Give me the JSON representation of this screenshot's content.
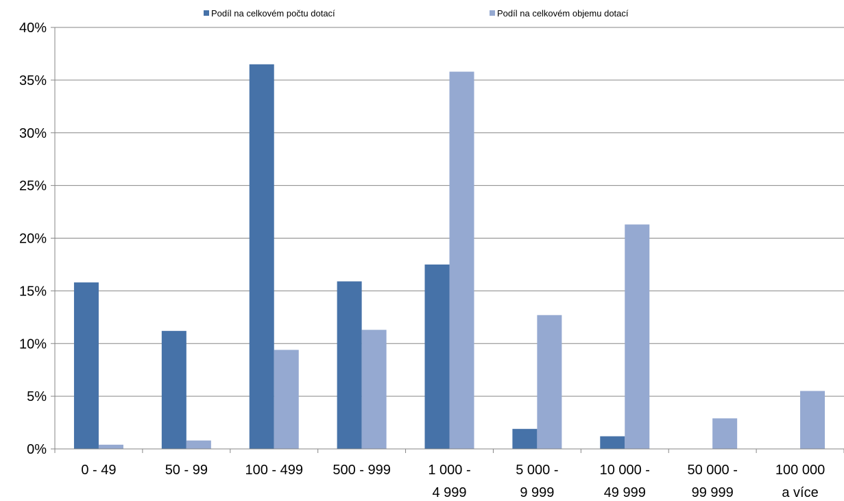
{
  "chart_data": {
    "type": "bar",
    "categories": [
      [
        "0 - 49"
      ],
      [
        "50 - 99"
      ],
      [
        "100 - 499"
      ],
      [
        "500 - 999"
      ],
      [
        "1 000 -",
        "4 999"
      ],
      [
        "5 000 -",
        "9 999"
      ],
      [
        "10 000 -",
        "49 999"
      ],
      [
        "50 000 -",
        "99 999"
      ],
      [
        "100 000",
        "a více"
      ]
    ],
    "series": [
      {
        "name": "Podíl na celkovém počtu dotací",
        "color": "#4672A8",
        "values": [
          15.8,
          11.2,
          36.5,
          15.9,
          17.5,
          1.9,
          1.2,
          0.0,
          0.0
        ]
      },
      {
        "name": "Podíl na celkovém objemu dotací",
        "color": "#95A9D1",
        "values": [
          0.4,
          0.8,
          9.4,
          11.3,
          35.8,
          12.7,
          21.3,
          2.9,
          5.5
        ]
      }
    ],
    "ylim": [
      0,
      40
    ],
    "yticks": [
      0,
      5,
      10,
      15,
      20,
      25,
      30,
      35,
      40
    ],
    "ytick_labels": [
      "0%",
      "5%",
      "10%",
      "15%",
      "20%",
      "25%",
      "30%",
      "35%",
      "40%"
    ],
    "grid": true,
    "legend_position": "top",
    "title": "",
    "xlabel": "",
    "ylabel": ""
  }
}
